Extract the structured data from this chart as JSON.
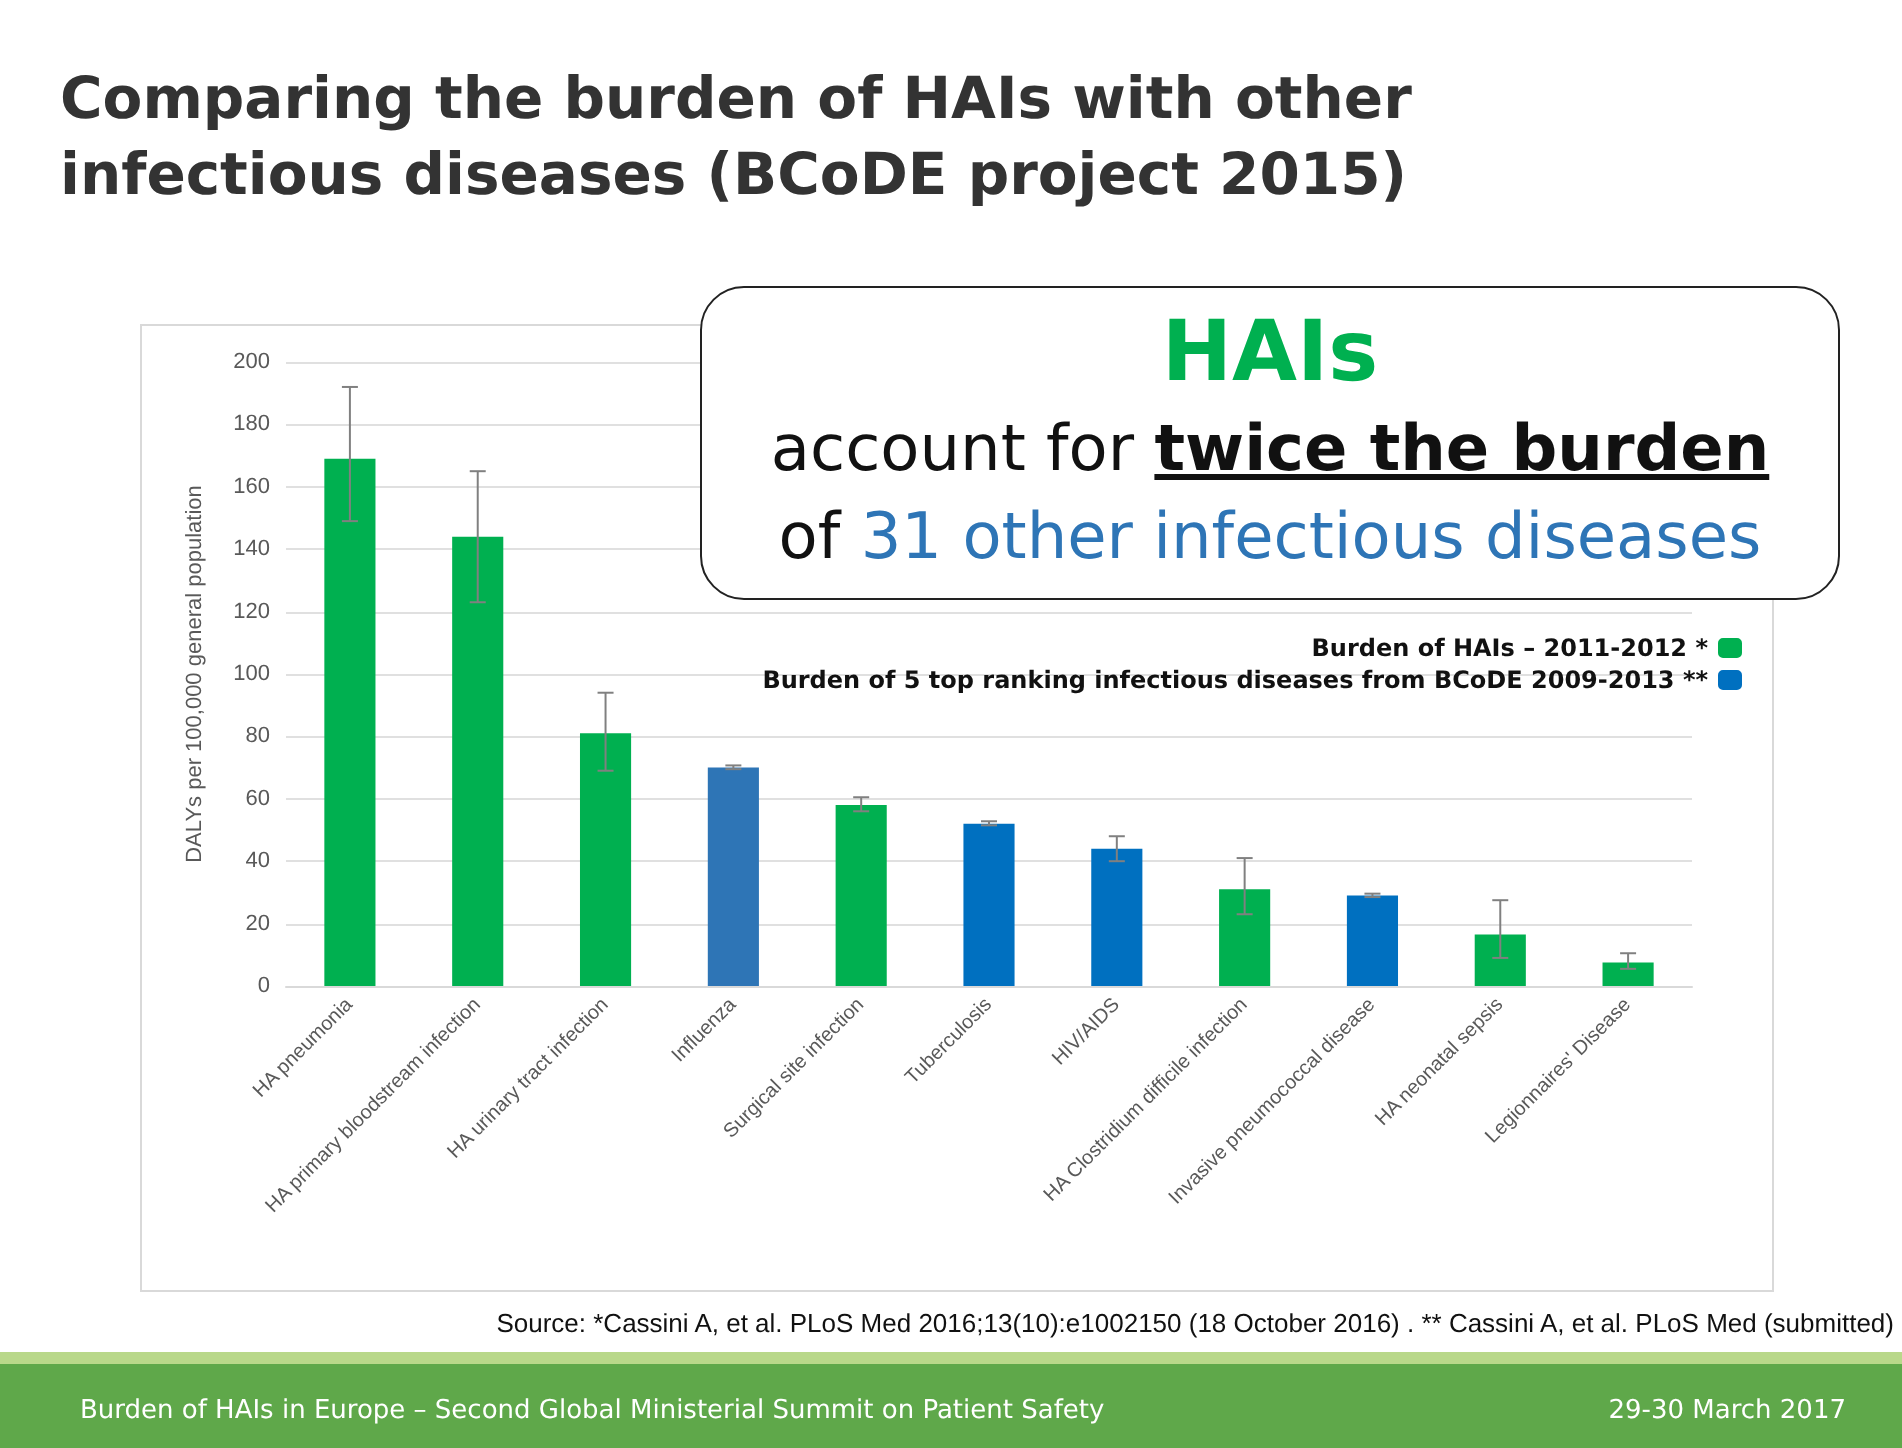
{
  "chart_data": {
    "type": "bar",
    "title": "Comparing the burden of HAIs with other infectious diseases (BCoDE project 2015)",
    "ylabel": "DALYs per 100,000 general population",
    "categories": [
      "HA pneumonia",
      "HA primary bloodstream infection",
      "HA urinary tract infection",
      "Influenza",
      "Surgical site infection",
      "Tuberculosis",
      "HIV/AIDS",
      "HA Clostridium difficile infection",
      "Invasive pneumococcal disease",
      "HA neonatal sepsis",
      "Legionnaires' Disease"
    ],
    "stacked": true,
    "series": [
      {
        "name": "Burden of HAIs – 2011-2012 *",
        "color": "#00b050",
        "values": [
          169,
          144,
          81,
          null,
          58,
          null,
          null,
          31,
          null,
          16.5,
          7.5
        ],
        "errors": [
          [
            149,
            192
          ],
          [
            123,
            165
          ],
          [
            69,
            94
          ],
          null,
          [
            56,
            60.5
          ],
          null,
          null,
          [
            23,
            41
          ],
          null,
          [
            9,
            27.5
          ],
          [
            5.5,
            10.5
          ]
        ]
      },
      {
        "name": "Burden of 5 top ranking infectious diseases from BCoDE 2009-2013 **",
        "color": "#0070c0",
        "colors": [
          null,
          null,
          null,
          "#2e75b6",
          null,
          "#0070c0",
          "#0070c0",
          null,
          "#0070c0",
          null,
          null
        ],
        "values": [
          null,
          null,
          null,
          70,
          null,
          52,
          44,
          null,
          29,
          null,
          null
        ],
        "errors": [
          null,
          null,
          null,
          [
            69.5,
            70.7
          ],
          null,
          [
            51.5,
            52.8
          ],
          [
            40,
            48
          ],
          null,
          [
            28.5,
            29.6
          ],
          null,
          null
        ]
      }
    ],
    "ylim": [
      0,
      200
    ],
    "yticks": [
      0,
      20,
      40,
      60,
      80,
      100,
      120,
      140,
      160,
      180,
      200
    ],
    "grid": "y",
    "legend": "top right",
    "annotations": [
      "HAIs",
      "account for",
      "twice the burden",
      "of",
      "31 other infectious diseases",
      "Source: *Cassini A, et al. PLoS Med 2016;13(10):e1002150 (18 October 2016) . ** Cassini A, et al. PLoS Med (submitted)",
      "Burden of HAIs in Europe – Second Global Ministerial Summit on Patient Safety",
      "29-30 March 2017"
    ]
  }
}
